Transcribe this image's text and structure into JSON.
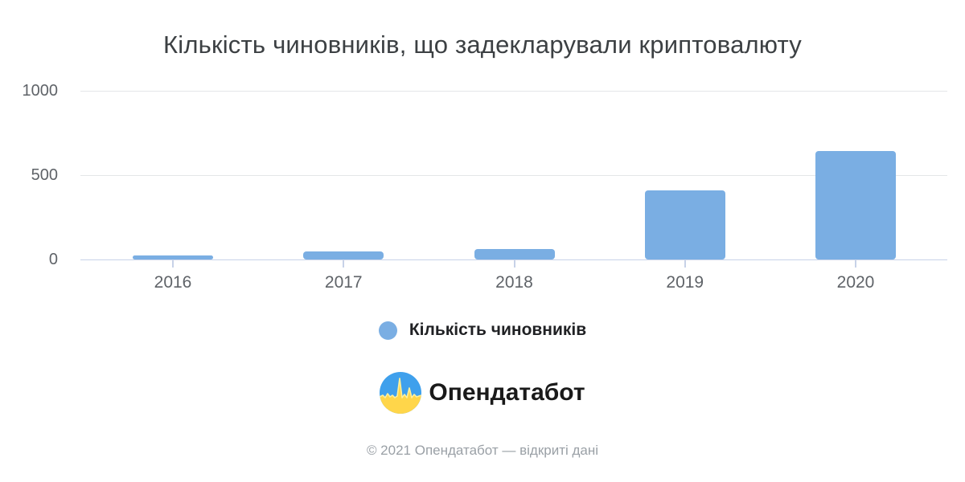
{
  "title": "Кількість чиновників, що задекларували криптовалюту",
  "chart_data": {
    "type": "bar",
    "title": "Кількість чиновників, що задекларували криптовалюту",
    "categories": [
      "2016",
      "2017",
      "2018",
      "2019",
      "2020"
    ],
    "values": [
      22,
      48,
      62,
      410,
      645
    ],
    "series_name": "Кількість чиновників",
    "xlabel": "",
    "ylabel": "",
    "ylim": [
      0,
      1000
    ],
    "yticks": [
      0,
      500,
      1000
    ],
    "grid": "horizontal",
    "legend_position": "bottom",
    "bar_color": "#7aaee3"
  },
  "legend": {
    "label": "Кількість чиновників",
    "marker_color": "#7aaee3"
  },
  "branding": {
    "logo_icon": "opendatabot-pulse-icon",
    "logo_text": "Опендатабот",
    "logo_blue": "#3fa0ec",
    "logo_yellow": "#ffd64a",
    "logo_pulse": "#ffef9c"
  },
  "footer": {
    "text": "© 2021 Опендатабот — відкриті дані"
  },
  "colors": {
    "background": "#ffffff",
    "title_text": "#3c4043",
    "axis_text": "#5f6368",
    "gridline": "#e4e6e8",
    "baseline": "#c7d2e8",
    "legend_text": "#202124",
    "footer_text": "#9aa0a6"
  }
}
